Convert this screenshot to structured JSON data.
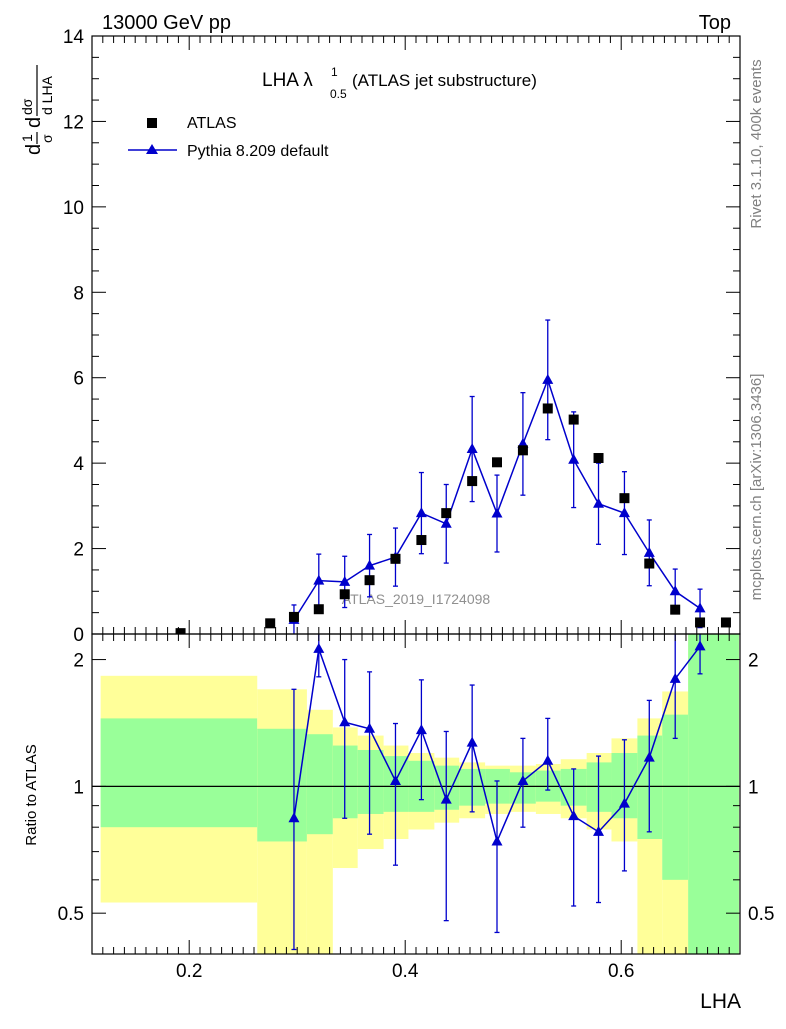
{
  "header": {
    "left": "13000 GeV pp",
    "right": "Top"
  },
  "side_labels": {
    "rivet": "Rivet 3.1.10,  400k events",
    "mcplots": "mcplots.cern.ch [arXiv:1306.3436]"
  },
  "plot_title": {
    "main": "LHA λ",
    "sup": "1",
    "sub": "0.5",
    "rest": " (ATLAS jet substructure)"
  },
  "watermark": "ATLAS_2019_I1724098",
  "y_label_top": "1/σ dσ/d LHA",
  "y_label_bottom": "Ratio to ATLAS",
  "x_label": "LHA",
  "legend": [
    {
      "name": "ATLAS",
      "marker": "square",
      "color": "#000000"
    },
    {
      "name": "Pythia 8.209 default",
      "marker": "triangle",
      "color": "#0000cc"
    }
  ],
  "colors": {
    "data": "#000000",
    "mc": "#0000cc",
    "band_inner": "#99ff99",
    "band_outer": "#ffff99"
  },
  "chart_data": [
    {
      "type": "scatter",
      "panel": "main",
      "xlabel": "LHA",
      "ylabel": "1/σ dσ/d LHA",
      "xlim": [
        0.11,
        0.71
      ],
      "ylim": [
        0,
        14
      ],
      "x_ticks": [
        0.2,
        0.4,
        0.6
      ],
      "y_ticks": [
        0,
        2,
        4,
        6,
        8,
        10,
        12,
        14
      ],
      "series": [
        {
          "name": "ATLAS",
          "x": [
            0.192,
            0.275,
            0.297,
            0.32,
            0.344,
            0.367,
            0.391,
            0.415,
            0.438,
            0.462,
            0.485,
            0.509,
            0.532,
            0.556,
            0.579,
            0.603,
            0.626,
            0.65,
            0.673,
            0.697
          ],
          "y": [
            0.02,
            0.25,
            0.4,
            0.58,
            0.93,
            1.26,
            1.76,
            2.2,
            2.83,
            3.58,
            4.02,
            4.3,
            5.28,
            5.02,
            4.12,
            3.18,
            1.65,
            0.57,
            0.27,
            0.27
          ]
        },
        {
          "name": "Pythia 8.209 default",
          "x": [
            0.297,
            0.32,
            0.344,
            0.367,
            0.391,
            0.415,
            0.438,
            0.462,
            0.485,
            0.509,
            0.532,
            0.556,
            0.579,
            0.603,
            0.626,
            0.65,
            0.673
          ],
          "y": [
            0.33,
            1.25,
            1.22,
            1.6,
            1.8,
            2.83,
            2.58,
            4.33,
            2.82,
            4.45,
            5.95,
            4.08,
            3.05,
            2.83,
            1.9,
            1.0,
            0.6
          ],
          "err": [
            0.35,
            0.62,
            0.6,
            0.73,
            0.68,
            0.95,
            0.92,
            1.23,
            0.9,
            1.2,
            1.4,
            1.12,
            0.95,
            0.97,
            0.77,
            0.52,
            0.45
          ]
        }
      ]
    },
    {
      "type": "line",
      "panel": "ratio",
      "xlabel": "LHA",
      "ylabel": "Ratio to ATLAS",
      "xlim": [
        0.11,
        0.71
      ],
      "ylim": [
        0.4,
        2.3
      ],
      "y_scale": "log",
      "y_ticks": [
        0.5,
        1,
        2
      ],
      "x_ticks": [
        0.2,
        0.4,
        0.6
      ],
      "reference_line": 1,
      "bands": {
        "edges": [
          0.118,
          0.263,
          0.309,
          0.333,
          0.356,
          0.38,
          0.403,
          0.427,
          0.45,
          0.474,
          0.497,
          0.521,
          0.544,
          0.568,
          0.591,
          0.615,
          0.638,
          0.662,
          0.685,
          0.709
        ],
        "inner_lo": [
          0.8,
          0.74,
          0.77,
          0.84,
          0.86,
          0.87,
          0.87,
          0.88,
          0.9,
          0.91,
          0.91,
          0.92,
          0.9,
          0.87,
          0.84,
          0.75,
          0.6,
          0.4,
          0.3
        ],
        "inner_hi": [
          1.45,
          1.37,
          1.33,
          1.25,
          1.22,
          1.18,
          1.15,
          1.12,
          1.1,
          1.1,
          1.08,
          1.09,
          1.1,
          1.14,
          1.2,
          1.32,
          1.48,
          2.3,
          2.5
        ],
        "outer_lo": [
          0.53,
          0.3,
          0.3,
          0.64,
          0.71,
          0.75,
          0.79,
          0.82,
          0.84,
          0.86,
          0.87,
          0.86,
          0.84,
          0.79,
          0.74,
          0.3,
          0.3,
          0.3,
          0.3
        ],
        "outer_hi": [
          1.83,
          1.7,
          1.52,
          1.38,
          1.32,
          1.25,
          1.2,
          1.17,
          1.14,
          1.12,
          1.12,
          1.13,
          1.16,
          1.2,
          1.3,
          1.45,
          1.68,
          2.4,
          2.5
        ]
      },
      "series": [
        {
          "name": "Pythia 8.209 default",
          "x": [
            0.297,
            0.32,
            0.344,
            0.367,
            0.391,
            0.415,
            0.438,
            0.462,
            0.485,
            0.509,
            0.532,
            0.556,
            0.579,
            0.603,
            0.626,
            0.65,
            0.673
          ],
          "y": [
            0.84,
            2.12,
            1.42,
            1.37,
            1.03,
            1.36,
            0.93,
            1.27,
            0.74,
            1.03,
            1.15,
            0.85,
            0.78,
            0.91,
            1.17,
            1.8,
            2.15
          ],
          "err_lo": [
            0.43,
            0.3,
            0.58,
            0.6,
            0.38,
            0.43,
            0.45,
            0.4,
            0.29,
            0.23,
            0.17,
            0.33,
            0.25,
            0.28,
            0.39,
            0.5,
            0.3
          ],
          "err_hi": [
            0.86,
            0.3,
            0.58,
            0.5,
            0.38,
            0.43,
            0.42,
            0.47,
            0.29,
            0.27,
            0.3,
            0.25,
            0.4,
            0.38,
            0.43,
            0.6,
            0.3
          ]
        }
      ]
    }
  ]
}
